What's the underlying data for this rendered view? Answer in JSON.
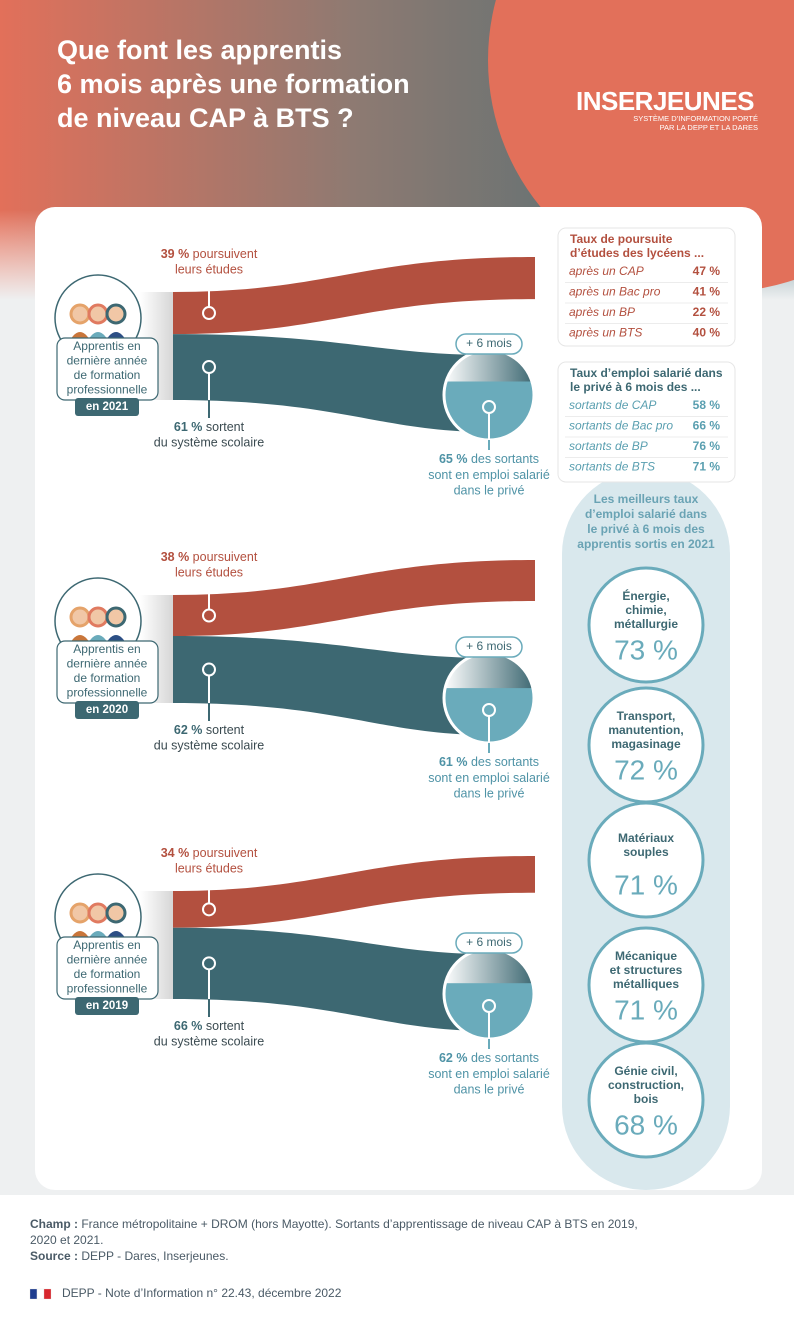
{
  "header": {
    "title": [
      "Que font les apprentis",
      "6 mois après une formation",
      "de niveau CAP à BTS ?"
    ]
  },
  "logo": {
    "name": "INSERJEUNES",
    "tagline": [
      "SYSTÈME D’INFORMATION PORTÉ",
      "PAR LA DEPP ET LA DARES"
    ]
  },
  "cohorts": [
    {
      "label": [
        "Apprentis en",
        "dernière année",
        "de formation",
        "professionnelle"
      ],
      "year": "en 2021",
      "study": {
        "value": 39,
        "label": "39 %"
      },
      "study_text": [
        "poursuivent",
        "leurs études"
      ],
      "leave": {
        "value": 61,
        "label": "61 %"
      },
      "leave_text": [
        "sortent",
        "du système scolaire"
      ],
      "delay": "+ 6 mois",
      "employ": {
        "value": 65,
        "label": "65 %"
      },
      "employ_text": [
        "des sortants",
        "sont en emploi salarié",
        "dans le privé"
      ]
    },
    {
      "label": [
        "Apprentis en",
        "dernière année",
        "de formation",
        "professionnelle"
      ],
      "year": "en 2020",
      "study": {
        "value": 38,
        "label": "38 %"
      },
      "study_text": [
        "poursuivent",
        "leurs études"
      ],
      "leave": {
        "value": 62,
        "label": "62 %"
      },
      "leave_text": [
        "sortent",
        "du système scolaire"
      ],
      "delay": "+ 6 mois",
      "employ": {
        "value": 61,
        "label": "61 %"
      },
      "employ_text": [
        "des sortants",
        "sont en emploi salarié",
        "dans le privé"
      ]
    },
    {
      "label": [
        "Apprentis en",
        "dernière année",
        "de formation",
        "professionnelle"
      ],
      "year": "en 2019",
      "study": {
        "value": 34,
        "label": "34 %"
      },
      "study_text": [
        "poursuivent",
        "leurs études"
      ],
      "leave": {
        "value": 66,
        "label": "66 %"
      },
      "leave_text": [
        "sortent",
        "du système scolaire"
      ],
      "delay": "+ 6 mois",
      "employ": {
        "value": 62,
        "label": "62 %"
      },
      "employ_text": [
        "des sortants",
        "sont en emploi salarié",
        "dans le privé"
      ]
    }
  ],
  "study_table": {
    "title": [
      "Taux de poursuite",
      "d’études des lycéens ..."
    ],
    "rows": [
      [
        "après un CAP",
        "47 %"
      ],
      [
        "après un Bac pro",
        "41 %"
      ],
      [
        "après un BP",
        "22 %"
      ],
      [
        "après un BTS",
        "40 %"
      ]
    ]
  },
  "employ_table": {
    "title": [
      "Taux d’emploi salarié dans",
      "le privé à 6 mois des ..."
    ],
    "rows": [
      [
        "sortants de CAP",
        "58 %"
      ],
      [
        "sortants de Bac pro",
        "66 %"
      ],
      [
        "sortants de BP",
        "76 %"
      ],
      [
        "sortants de BTS",
        "71 %"
      ]
    ]
  },
  "best": {
    "title": [
      "Les meilleurs taux",
      "d’emploi salarié dans",
      "le privé à 6 mois des",
      "apprentis sortis en 2021"
    ],
    "items": [
      {
        "name": [
          "Énergie,",
          "chimie,",
          "métallurgie"
        ],
        "value": "73 %"
      },
      {
        "name": [
          "Transport,",
          "manutention,",
          "magasinage"
        ],
        "value": "72 %"
      },
      {
        "name": [
          "Matériaux",
          "souples"
        ],
        "value": "71 %"
      },
      {
        "name": [
          "Mécanique",
          "et structures",
          "métalliques"
        ],
        "value": "71 %"
      },
      {
        "name": [
          "Génie civil,",
          "construction,",
          "bois"
        ],
        "value": "68 %"
      }
    ]
  },
  "footer": {
    "champ_label": "Champ :",
    "champ": [
      "France métropolitaine + DROM (hors Mayotte). Sortants d’apprentissage de niveau CAP à BTS en 2019,",
      "2020 et 2021."
    ],
    "source_label": "Source :",
    "source": "DEPP - Dares, Inserjeunes.",
    "note": "DEPP - Note d’Information n° 22.43, décembre 2022"
  }
}
